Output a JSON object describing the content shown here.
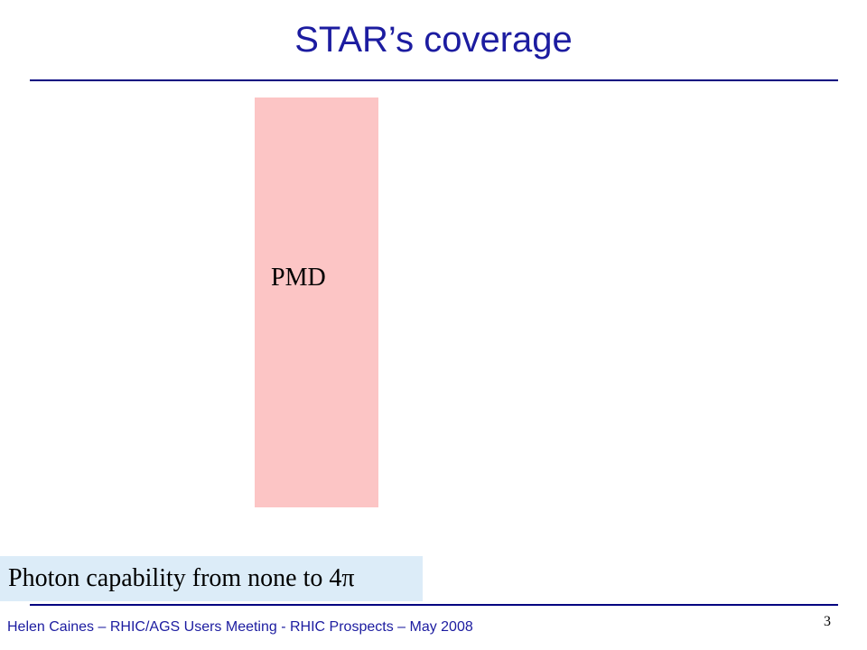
{
  "slide": {
    "title": "STAR’s coverage",
    "detector_label": "PMD",
    "callout": "Photon capability from none to 4π",
    "footer": "Helen Caines – RHIC/AGS Users Meeting -  RHIC Prospects – May 2008",
    "page_number": "3"
  },
  "colors": {
    "title": "#1c1ca0",
    "rule": "#000080",
    "detector_block": "#fcc5c5",
    "callout_background": "#dcecf8"
  }
}
